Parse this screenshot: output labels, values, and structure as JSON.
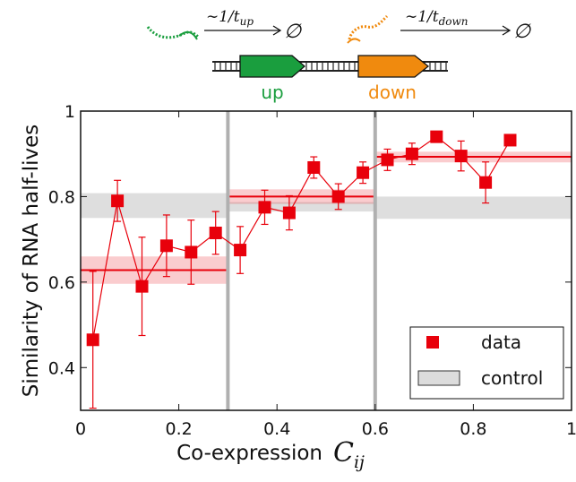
{
  "diagram": {
    "up_label": "up",
    "down_label": "down",
    "up_rate_text": "∼1/t",
    "up_rate_sub": "up",
    "down_rate_text": "∼1/t",
    "down_rate_sub": "down",
    "empty_set": "∅",
    "colors": {
      "up": "#1a9e3e",
      "down": "#f08a0e",
      "dna": "#222222"
    }
  },
  "chart_data": {
    "type": "scatter",
    "xlabel": "Co-expression",
    "xlabel_symbol": "C",
    "xlabel_sub": "ij",
    "ylabel": "Similarity of RNA half-lives",
    "xlim": [
      0,
      1
    ],
    "ylim": [
      0.3,
      1.0
    ],
    "xticks": [
      0,
      0.2,
      0.4,
      0.6,
      0.8,
      1
    ],
    "xtick_labels": [
      "0",
      "0.2",
      "0.4",
      "0.6",
      "0.8",
      "1"
    ],
    "yticks": [
      0.4,
      0.6,
      0.8,
      1.0
    ],
    "ytick_labels": [
      "0.4",
      "0.6",
      "0.8",
      "1"
    ],
    "vlines": [
      0.3,
      0.6
    ],
    "series": [
      {
        "name": "data",
        "color": "#e8000b",
        "x": [
          0.025,
          0.075,
          0.125,
          0.175,
          0.225,
          0.275,
          0.325,
          0.375,
          0.425,
          0.475,
          0.525,
          0.575,
          0.625,
          0.675,
          0.725,
          0.775,
          0.825,
          0.875
        ],
        "y": [
          0.465,
          0.79,
          0.59,
          0.685,
          0.67,
          0.715,
          0.675,
          0.775,
          0.762,
          0.868,
          0.8,
          0.856,
          0.886,
          0.9,
          0.94,
          0.895,
          0.833,
          0.932
        ],
        "err": [
          0.16,
          0.048,
          0.115,
          0.072,
          0.075,
          0.05,
          0.055,
          0.04,
          0.04,
          0.025,
          0.03,
          0.025,
          0.025,
          0.025,
          0.012,
          0.035,
          0.048,
          0.0
        ]
      }
    ],
    "bin_means": [
      {
        "x_range": [
          0.0,
          0.3
        ],
        "y": 0.628,
        "ci": [
          0.596,
          0.66
        ]
      },
      {
        "x_range": [
          0.3,
          0.6
        ],
        "y": 0.8,
        "ci": [
          0.783,
          0.817
        ]
      },
      {
        "x_range": [
          0.6,
          1.0
        ],
        "y": 0.893,
        "ci": [
          0.88,
          0.905
        ]
      }
    ],
    "control": {
      "name": "control",
      "bands": [
        {
          "x_range": [
            0.0,
            0.3
          ],
          "y_range": [
            0.75,
            0.808
          ]
        },
        {
          "x_range": [
            0.3,
            0.6
          ],
          "y_range": [
            0.765,
            0.787
          ]
        },
        {
          "x_range": [
            0.6,
            1.0
          ],
          "y_range": [
            0.748,
            0.8
          ]
        }
      ]
    },
    "legend": {
      "position": "lower-right",
      "entries": [
        "data",
        "control"
      ]
    }
  }
}
